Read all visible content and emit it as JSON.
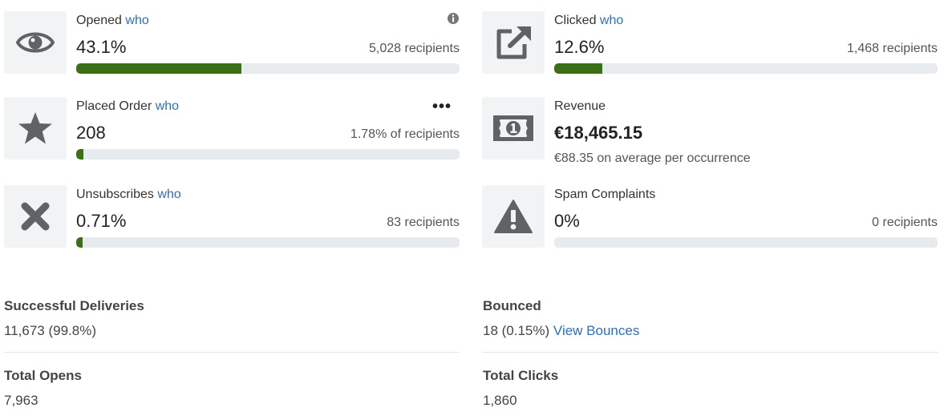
{
  "cards": {
    "opened": {
      "label": "Opened",
      "who": "who",
      "value": "43.1%",
      "right": "5,028 recipients",
      "progress": 0.431
    },
    "clicked": {
      "label": "Clicked",
      "who": "who",
      "value": "12.6%",
      "right": "1,468 recipients",
      "progress": 0.126
    },
    "placed_order": {
      "label": "Placed Order",
      "who": "who",
      "value": "208",
      "right": "1.78% of recipients",
      "progress": 0.0178,
      "menu": "•••"
    },
    "revenue": {
      "label": "Revenue",
      "value": "€18,465.15",
      "sub": "€88.35 on average per occurrence"
    },
    "unsubscribes": {
      "label": "Unsubscribes",
      "who": "who",
      "value": "0.71%",
      "right": "83 recipients",
      "progress": 0.0071
    },
    "spam": {
      "label": "Spam Complaints",
      "value": "0%",
      "right": "0 recipients",
      "progress": 0
    }
  },
  "stats": {
    "deliveries": {
      "title": "Successful Deliveries",
      "value": "11,673 (99.8%)"
    },
    "bounced": {
      "title": "Bounced",
      "value": "18 (0.15%)",
      "link": "View Bounces"
    },
    "opens": {
      "title": "Total Opens",
      "value": "7,963"
    },
    "clicks": {
      "title": "Total Clicks",
      "value": "1,860"
    }
  },
  "colors": {
    "accent_link": "#2f6eba",
    "progress_fill": "#3b7016",
    "icon_gray": "#5f6368",
    "track": "#e8ebee"
  },
  "icons": [
    "eye-icon",
    "external-link-icon",
    "star-icon",
    "banknote-icon",
    "close-x-icon",
    "warning-icon",
    "info-icon"
  ]
}
